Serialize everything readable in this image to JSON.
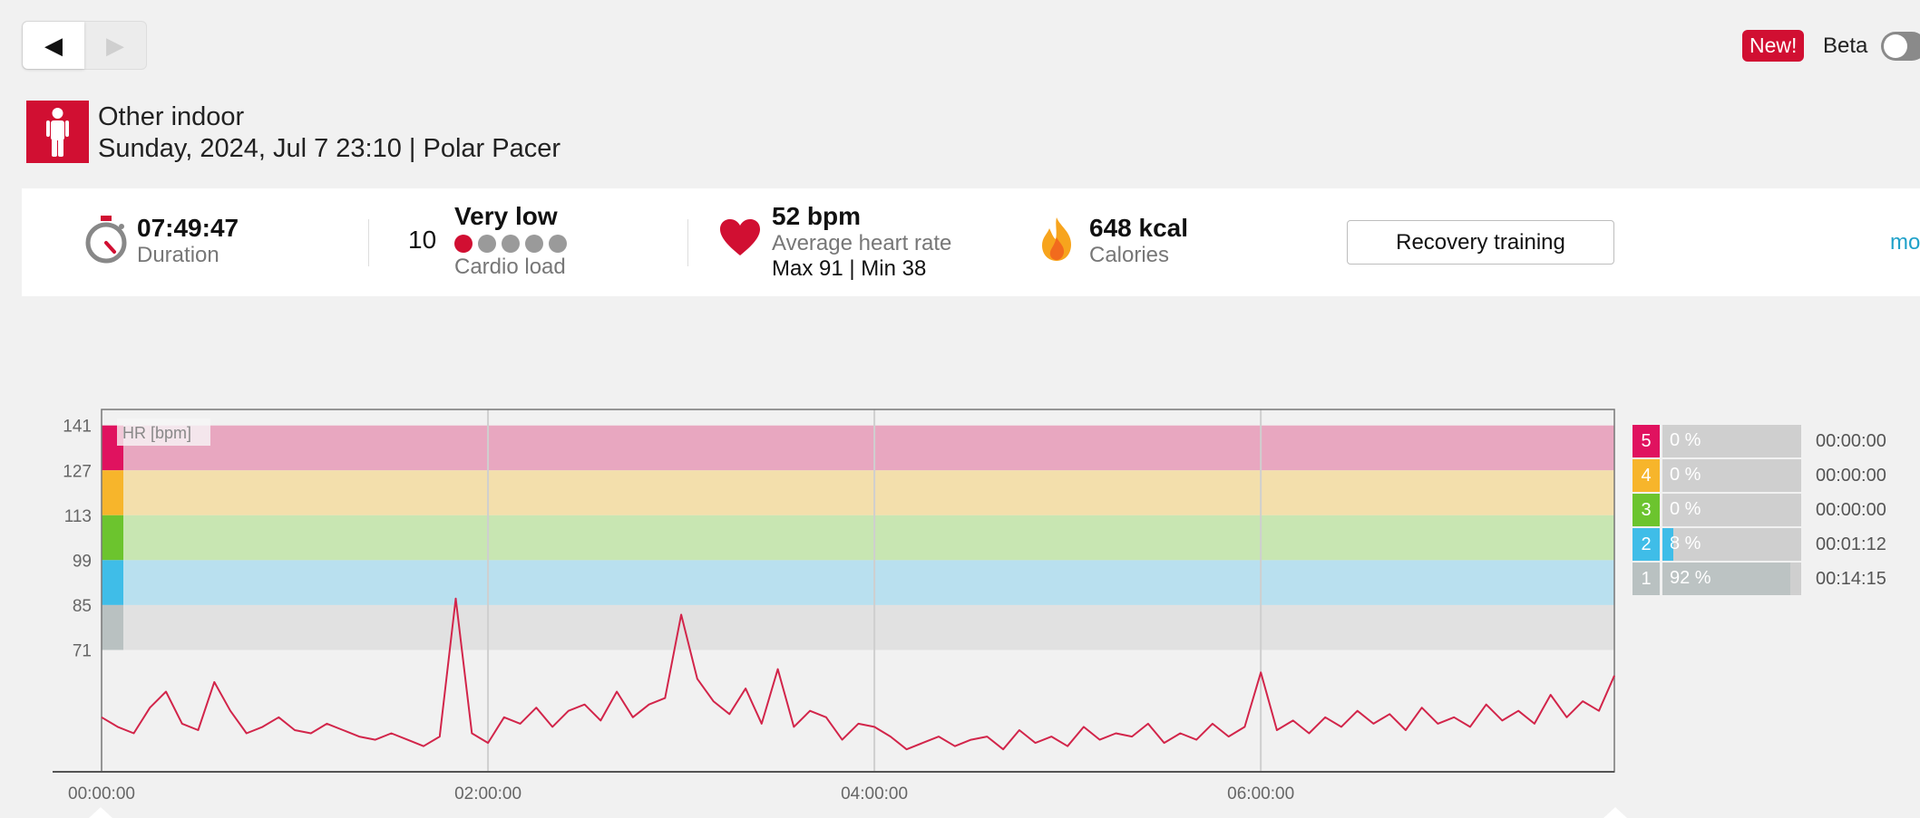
{
  "nav": {
    "prev_symbol": "◀",
    "next_symbol": "▶"
  },
  "header_right": {
    "new_badge": "New!",
    "beta_label": "Beta",
    "beta_on": false
  },
  "session": {
    "sport": "Other indoor",
    "subtitle": "Sunday, 2024, Jul 7 23:10 | Polar Pacer"
  },
  "summary": {
    "duration": {
      "value": "07:49:47",
      "label": "Duration"
    },
    "cardio_load": {
      "number": "10",
      "level": "Very low",
      "label": "Cardio load",
      "dots_filled": 1,
      "dots_total": 5
    },
    "heart_rate": {
      "value": "52 bpm",
      "label": "Average heart rate",
      "max_min": "Max 91  |  Min 38"
    },
    "calories": {
      "value": "648 kcal",
      "label": "Calories"
    },
    "benefit_button": "Recovery training",
    "more_link": "mo"
  },
  "chart_data": {
    "type": "line",
    "series_label": "HR [bpm]",
    "y_ticks": [
      141,
      127,
      113,
      99,
      85,
      71
    ],
    "ylim": [
      33,
      146
    ],
    "x_ticks": [
      "00:00:00",
      "02:00:00",
      "04:00:00",
      "06:00:00"
    ],
    "x_tick_minutes": [
      0,
      120,
      240,
      360
    ],
    "xlim_minutes": [
      0,
      469.8
    ],
    "zones": [
      {
        "zone": 5,
        "from": 127,
        "to": 141,
        "color": "#e8a7c0",
        "key_color": "#e0125f"
      },
      {
        "zone": 4,
        "from": 113,
        "to": 127,
        "color": "#f3dfac",
        "key_color": "#f7b52b"
      },
      {
        "zone": 3,
        "from": 99,
        "to": 113,
        "color": "#c8e6b2",
        "key_color": "#6cc42e"
      },
      {
        "zone": 2,
        "from": 85,
        "to": 99,
        "color": "#b9e0ef",
        "key_color": "#3fbde8"
      },
      {
        "zone": 1,
        "from": 71,
        "to": 85,
        "color": "#e1e1e1",
        "key_color": "#b9c1c1"
      }
    ],
    "hr_trace": {
      "minutes": [
        0,
        5,
        10,
        15,
        20,
        25,
        30,
        35,
        40,
        45,
        50,
        55,
        60,
        65,
        70,
        75,
        80,
        85,
        90,
        95,
        100,
        105,
        110,
        115,
        120,
        125,
        130,
        135,
        140,
        145,
        150,
        155,
        160,
        165,
        170,
        175,
        180,
        185,
        190,
        195,
        200,
        205,
        210,
        215,
        220,
        225,
        230,
        235,
        240,
        245,
        250,
        255,
        260,
        265,
        270,
        275,
        280,
        285,
        290,
        295,
        300,
        305,
        310,
        315,
        320,
        325,
        330,
        335,
        340,
        345,
        350,
        355,
        360,
        365,
        370,
        375,
        380,
        385,
        390,
        395,
        400,
        405,
        410,
        415,
        420,
        425,
        430,
        435,
        440,
        445,
        450,
        455,
        460,
        465,
        469.8
      ],
      "bpm": [
        50,
        47,
        45,
        53,
        58,
        48,
        46,
        61,
        52,
        45,
        47,
        50,
        46,
        45,
        48,
        46,
        44,
        43,
        45,
        43,
        41,
        44,
        87,
        45,
        42,
        50,
        48,
        53,
        47,
        52,
        54,
        49,
        58,
        50,
        54,
        56,
        82,
        62,
        55,
        51,
        59,
        48,
        65,
        47,
        52,
        50,
        43,
        48,
        47,
        44,
        40,
        42,
        44,
        41,
        43,
        44,
        40,
        46,
        42,
        44,
        41,
        47,
        43,
        45,
        44,
        48,
        42,
        45,
        43,
        48,
        44,
        47,
        64,
        46,
        49,
        45,
        50,
        47,
        52,
        48,
        51,
        46,
        53,
        48,
        50,
        47,
        54,
        49,
        52,
        48,
        57,
        50,
        55,
        52,
        63
      ]
    }
  },
  "zone_table": [
    {
      "zone": "5",
      "percent": "0 %",
      "fraction": 0.0,
      "time": "00:00:00"
    },
    {
      "zone": "4",
      "percent": "0 %",
      "fraction": 0.0,
      "time": "00:00:00"
    },
    {
      "zone": "3",
      "percent": "0 %",
      "fraction": 0.0,
      "time": "00:00:00"
    },
    {
      "zone": "2",
      "percent": "8 %",
      "fraction": 0.08,
      "time": "00:01:12"
    },
    {
      "zone": "1",
      "percent": "92 %",
      "fraction": 0.92,
      "time": "00:14:15"
    }
  ]
}
